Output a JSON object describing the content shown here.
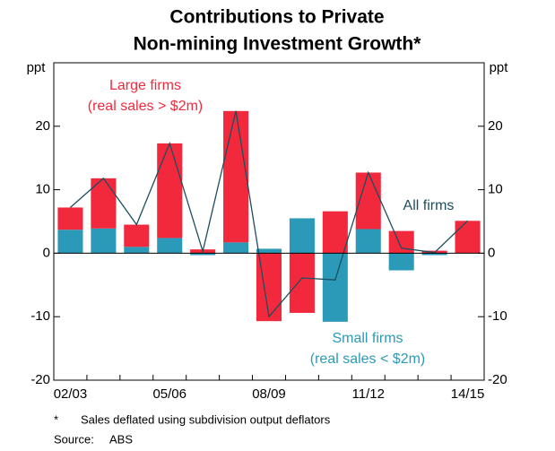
{
  "chart_data": {
    "type": "bar",
    "title": [
      "Contributions to Private",
      "Non-mining Investment Growth*"
    ],
    "categories": [
      "02/03",
      null,
      null,
      "05/06",
      null,
      null,
      "08/09",
      null,
      null,
      "11/12",
      null,
      null,
      "14/15"
    ],
    "stacked": true,
    "series": [
      {
        "name": "Small firms",
        "color": "#2b9ab8",
        "values": [
          3.7,
          3.9,
          1.0,
          2.4,
          -0.3,
          1.7,
          0.7,
          5.5,
          -10.8,
          3.8,
          -2.7,
          -0.3,
          0
        ]
      },
      {
        "name": "Large firms",
        "color": "#f2293c",
        "values": [
          3.5,
          7.9,
          3.5,
          14.9,
          0.6,
          20.7,
          -10.7,
          -9.4,
          6.6,
          8.9,
          3.5,
          0.4,
          5.1
        ]
      },
      {
        "name": "All firms",
        "type": "line",
        "color": "#1b4f5e",
        "values": [
          7.2,
          11.8,
          4.5,
          17.3,
          0.3,
          22.4,
          -10,
          -3.9,
          -4.2,
          12.7,
          0.8,
          0.1,
          5.1
        ]
      }
    ],
    "annotations": {
      "large": [
        "Large firms",
        "(real sales > $2m)"
      ],
      "all": "All firms",
      "small": [
        "Small firms",
        "(real sales < $2m)"
      ]
    },
    "y_unit": "ppt",
    "y2_unit": "ppt",
    "ylim": [
      -20,
      30
    ],
    "yticks": [
      -20,
      -10,
      0,
      10,
      20
    ],
    "y2lim": [
      -20,
      30
    ],
    "y2ticks": [
      -20,
      -10,
      0,
      10,
      20
    ],
    "footnotes": [
      [
        "*",
        "Sales deflated using subdivision output deflators"
      ],
      [
        "Source:",
        "ABS"
      ]
    ]
  }
}
